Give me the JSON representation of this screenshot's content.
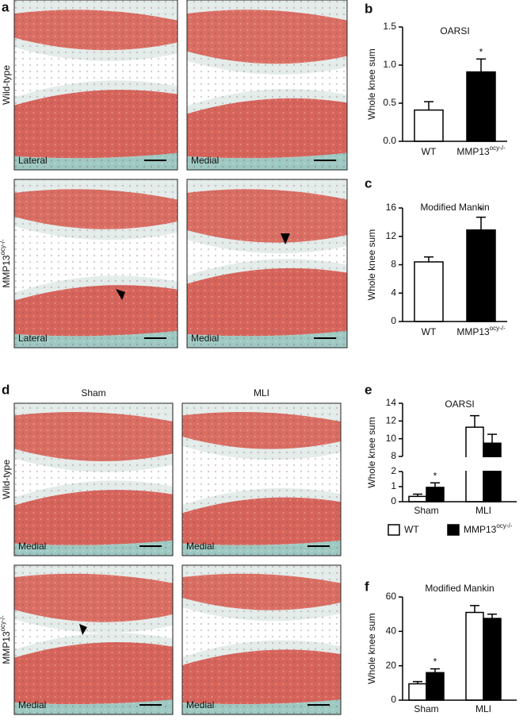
{
  "panel_a": {
    "label": "a",
    "row_labels": [
      "Wild-type",
      "MMP13"
    ],
    "row_label_sups": [
      null,
      "ocy-/-"
    ],
    "image_labels": [
      "Lateral",
      "Medial",
      "Lateral",
      "Medial"
    ]
  },
  "panel_d": {
    "label": "d",
    "column_labels": [
      "Sham",
      "MLI"
    ],
    "row_labels": [
      "Wild-type",
      "MMP13"
    ],
    "row_label_sups": [
      null,
      "ocy-/-"
    ],
    "image_labels": [
      "Medial",
      "Medial",
      "Medial",
      "Medial"
    ]
  },
  "chart_data": [
    {
      "type": "bar",
      "panel_label": "b",
      "title": "OARSI",
      "y_label": "Whole knee sum",
      "categories": [
        "WT",
        "MMP13"
      ],
      "category_sups": [
        null,
        "ocy-/-"
      ],
      "values": [
        0.41,
        0.91
      ],
      "errors": [
        0.11,
        0.17
      ],
      "colors": [
        "#ffffff",
        "#000000"
      ],
      "annotations": [
        null,
        "*"
      ],
      "ylim": [
        0,
        1.5
      ],
      "yticks": [
        {
          "value": 0,
          "label": "0.0"
        },
        0.5,
        {
          "value": 1,
          "label": "1.0"
        },
        1.5
      ]
    },
    {
      "type": "bar",
      "panel_label": "c",
      "title": "Modified Mankin",
      "y_label": "Whole knee sum",
      "categories": [
        "WT",
        "MMP13"
      ],
      "category_sups": [
        null,
        "ocy-/-"
      ],
      "values": [
        8.4,
        12.9
      ],
      "errors": [
        0.7,
        1.8
      ],
      "colors": [
        "#ffffff",
        "#000000"
      ],
      "annotations": [
        null,
        "*"
      ],
      "ylim": [
        0,
        16
      ],
      "yticks": [
        0,
        4,
        8,
        12,
        16
      ]
    },
    {
      "type": "grouped-bar",
      "panel_label": "e",
      "title": "OARSI",
      "y_label": "Whole knee sum",
      "categories": [
        "Sham",
        "MLI"
      ],
      "series": [
        {
          "name": "WT",
          "color": "#ffffff",
          "values": [
            0.35,
            11.3
          ],
          "errors": [
            0.15,
            1.3
          ],
          "annotations": [
            null,
            null
          ]
        },
        {
          "name": "MMP13",
          "name_sup": "ocy-/-",
          "color": "#000000",
          "values": [
            0.95,
            9.5
          ],
          "errors": [
            0.3,
            1.0
          ],
          "annotations": [
            "*",
            null
          ]
        }
      ],
      "segments": [
        {
          "ylim": [
            0,
            2
          ],
          "yticks": [
            0,
            1,
            2
          ]
        },
        {
          "ylim": [
            8,
            14
          ],
          "yticks": [
            8,
            10,
            12,
            14
          ]
        }
      ],
      "legend": "below"
    },
    {
      "type": "grouped-bar",
      "panel_label": "f",
      "title": "Modified Mankin",
      "y_label": "Whole knee sum",
      "categories": [
        "Sham",
        "MLI"
      ],
      "series": [
        {
          "name": "WT",
          "color": "#ffffff",
          "values": [
            9.5,
            51
          ],
          "errors": [
            1.3,
            4
          ],
          "annotations": [
            null,
            null
          ]
        },
        {
          "name": "MMP13",
          "name_sup": "ocy-/-",
          "color": "#000000",
          "values": [
            16,
            47.5
          ],
          "errors": [
            2.2,
            2.5
          ],
          "annotations": [
            "*",
            null
          ]
        }
      ],
      "ylim": [
        0,
        60
      ],
      "yticks": [
        0,
        20,
        40,
        60
      ]
    }
  ]
}
